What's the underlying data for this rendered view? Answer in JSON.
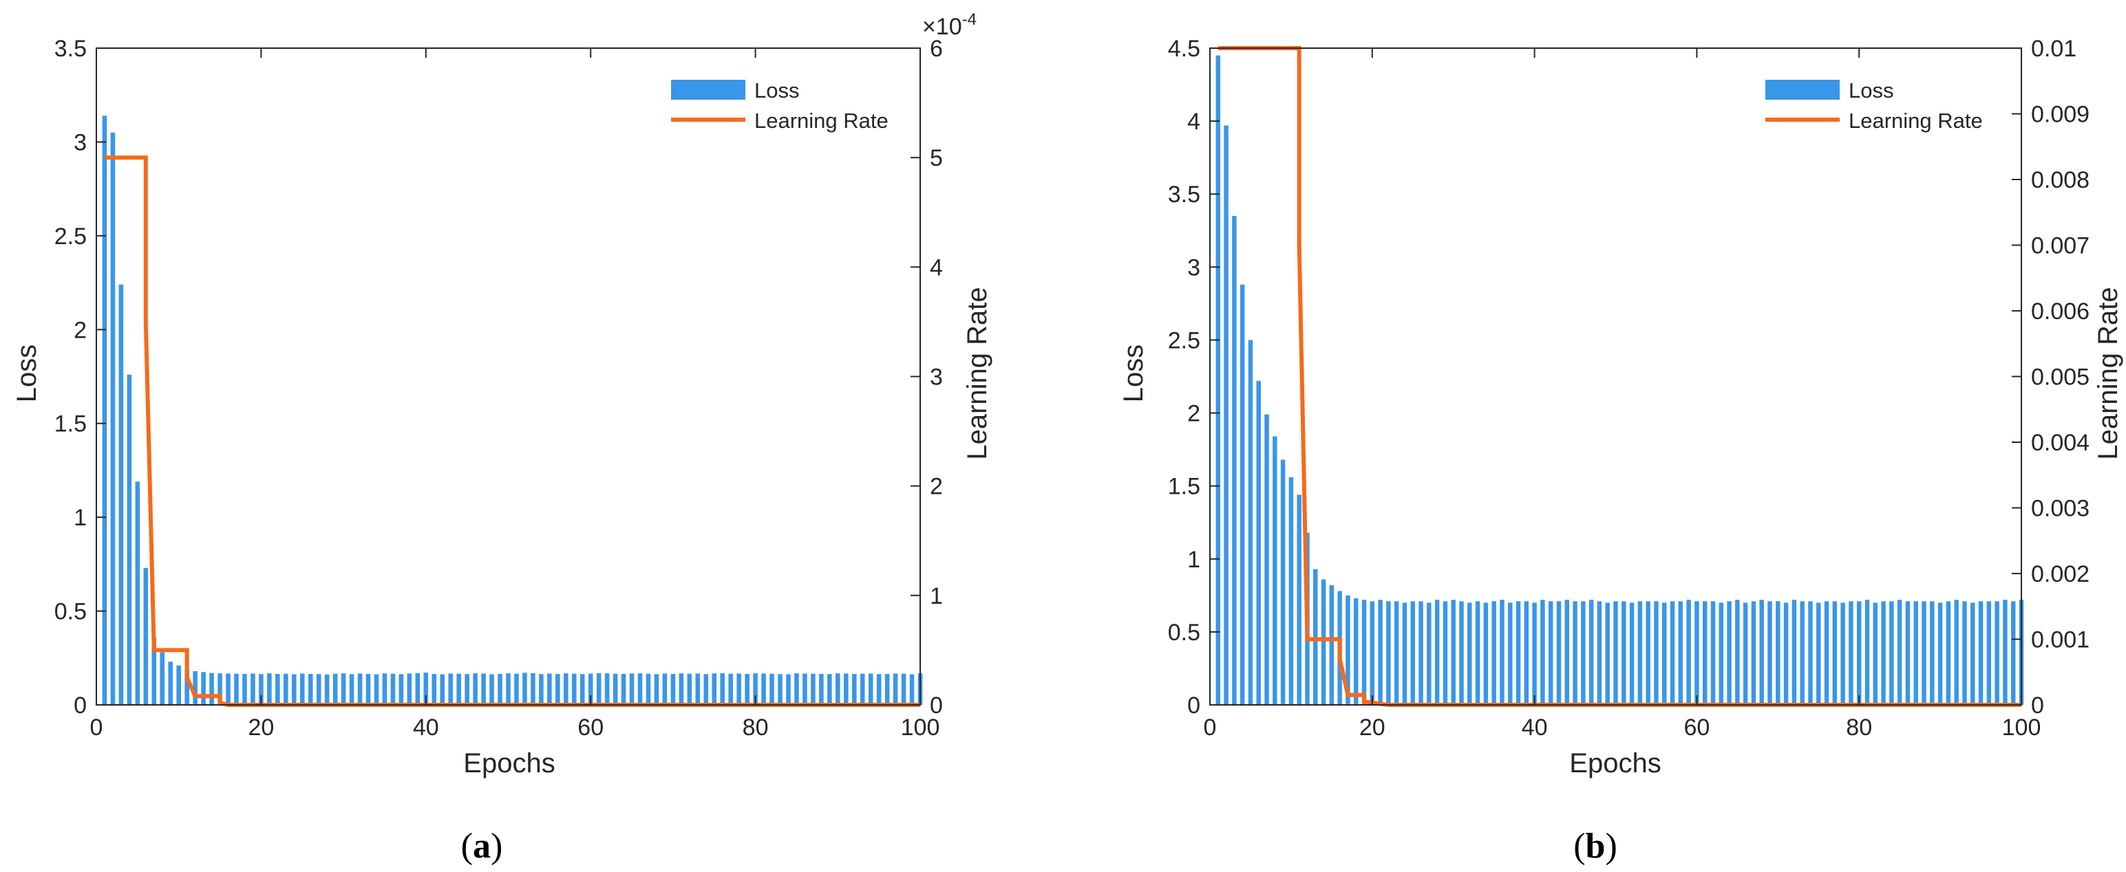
{
  "colors": {
    "loss": "#3a96e8",
    "learning_rate": "#f56a1c",
    "axis": "#262626"
  },
  "chart_data": [
    {
      "type": "bar",
      "panel_label": "a",
      "title": "",
      "xlabel": "Epochs",
      "ylabel": "Loss",
      "y2label": "Learning Rate",
      "y2_multiplier": "×10",
      "y2_exponent": "-4",
      "xlim": [
        0,
        100
      ],
      "ylim": [
        0,
        3.5
      ],
      "y2lim": [
        0,
        6
      ],
      "xticks": [
        "0",
        "20",
        "40",
        "60",
        "80",
        "100"
      ],
      "yticks": [
        "0",
        "0.5",
        "1",
        "1.5",
        "2",
        "2.5",
        "3",
        "3.5"
      ],
      "y2ticks": [
        "0",
        "1",
        "2",
        "3",
        "4",
        "5",
        "6"
      ],
      "legend": {
        "position": "top-right",
        "entries": [
          "Loss",
          "Learning Rate"
        ]
      },
      "series": [
        {
          "name": "Loss",
          "kind": "bar",
          "x": [
            1,
            2,
            3,
            4,
            5,
            6,
            7,
            8,
            9,
            10,
            11,
            12,
            13,
            14,
            15,
            16,
            17,
            18,
            19,
            20,
            21,
            22,
            23,
            24,
            25,
            26,
            27,
            28,
            29,
            30,
            31,
            32,
            33,
            34,
            35,
            36,
            37,
            38,
            39,
            40,
            41,
            42,
            43,
            44,
            45,
            46,
            47,
            48,
            49,
            50,
            51,
            52,
            53,
            54,
            55,
            56,
            57,
            58,
            59,
            60,
            61,
            62,
            63,
            64,
            65,
            66,
            67,
            68,
            69,
            70,
            71,
            72,
            73,
            74,
            75,
            76,
            77,
            78,
            79,
            80,
            81,
            82,
            83,
            84,
            85,
            86,
            87,
            88,
            89,
            90,
            91,
            92,
            93,
            94,
            95,
            96,
            97,
            98,
            99,
            100
          ],
          "values": [
            3.14,
            3.05,
            2.24,
            1.76,
            1.19,
            0.73,
            0.36,
            0.28,
            0.23,
            0.21,
            0.19,
            0.18,
            0.175,
            0.17,
            0.168,
            0.167,
            0.166,
            0.165,
            0.167,
            0.164,
            0.168,
            0.165,
            0.166,
            0.163,
            0.167,
            0.165,
            0.164,
            0.162,
            0.166,
            0.168,
            0.164,
            0.167,
            0.165,
            0.163,
            0.168,
            0.166,
            0.164,
            0.167,
            0.169,
            0.172,
            0.165,
            0.163,
            0.167,
            0.166,
            0.164,
            0.168,
            0.167,
            0.163,
            0.165,
            0.168,
            0.166,
            0.171,
            0.169,
            0.164,
            0.167,
            0.165,
            0.168,
            0.166,
            0.164,
            0.167,
            0.169,
            0.168,
            0.166,
            0.165,
            0.167,
            0.168,
            0.166,
            0.164,
            0.167,
            0.165,
            0.168,
            0.166,
            0.167,
            0.164,
            0.168,
            0.169,
            0.166,
            0.167,
            0.165,
            0.168,
            0.167,
            0.166,
            0.164,
            0.163,
            0.168,
            0.167,
            0.166,
            0.165,
            0.164,
            0.168,
            0.167,
            0.165,
            0.166,
            0.167,
            0.164,
            0.165,
            0.167,
            0.166,
            0.163,
            0.168
          ]
        },
        {
          "name": "Learning Rate",
          "kind": "step",
          "axis": "right",
          "x": [
            1,
            6,
            6,
            7,
            11,
            11,
            12,
            15,
            15,
            16,
            100
          ],
          "values": [
            5,
            5,
            3.5,
            0.5,
            0.5,
            0.25,
            0.08,
            0.08,
            0.02,
            0.0,
            0.0
          ]
        }
      ]
    },
    {
      "type": "bar",
      "panel_label": "b",
      "title": "",
      "xlabel": "Epochs",
      "ylabel": "Loss",
      "y2label": "Learning Rate",
      "xlim": [
        0,
        100
      ],
      "ylim": [
        0,
        4.5
      ],
      "y2lim": [
        0,
        0.01
      ],
      "xticks": [
        "0",
        "20",
        "40",
        "60",
        "80",
        "100"
      ],
      "yticks": [
        "0",
        "0.5",
        "1",
        "1.5",
        "2",
        "2.5",
        "3",
        "3.5",
        "4",
        "4.5"
      ],
      "y2ticks": [
        "0",
        "0.001",
        "0.002",
        "0.003",
        "0.004",
        "0.005",
        "0.006",
        "0.007",
        "0.008",
        "0.009",
        "0.01"
      ],
      "legend": {
        "position": "top-right",
        "entries": [
          "Loss",
          "Learning Rate"
        ]
      },
      "series": [
        {
          "name": "Loss",
          "kind": "bar",
          "x": [
            1,
            2,
            3,
            4,
            5,
            6,
            7,
            8,
            9,
            10,
            11,
            12,
            13,
            14,
            15,
            16,
            17,
            18,
            19,
            20,
            21,
            22,
            23,
            24,
            25,
            26,
            27,
            28,
            29,
            30,
            31,
            32,
            33,
            34,
            35,
            36,
            37,
            38,
            39,
            40,
            41,
            42,
            43,
            44,
            45,
            46,
            47,
            48,
            49,
            50,
            51,
            52,
            53,
            54,
            55,
            56,
            57,
            58,
            59,
            60,
            61,
            62,
            63,
            64,
            65,
            66,
            67,
            68,
            69,
            70,
            71,
            72,
            73,
            74,
            75,
            76,
            77,
            78,
            79,
            80,
            81,
            82,
            83,
            84,
            85,
            86,
            87,
            88,
            89,
            90,
            91,
            92,
            93,
            94,
            95,
            96,
            97,
            98,
            99,
            100
          ],
          "values": [
            4.45,
            3.97,
            3.35,
            2.88,
            2.5,
            2.22,
            1.99,
            1.84,
            1.68,
            1.56,
            1.44,
            1.18,
            0.93,
            0.86,
            0.82,
            0.78,
            0.75,
            0.73,
            0.72,
            0.71,
            0.72,
            0.71,
            0.71,
            0.7,
            0.71,
            0.71,
            0.7,
            0.72,
            0.71,
            0.72,
            0.71,
            0.7,
            0.71,
            0.7,
            0.71,
            0.72,
            0.7,
            0.71,
            0.71,
            0.7,
            0.72,
            0.71,
            0.71,
            0.72,
            0.71,
            0.71,
            0.72,
            0.71,
            0.7,
            0.71,
            0.71,
            0.7,
            0.71,
            0.71,
            0.71,
            0.7,
            0.71,
            0.71,
            0.72,
            0.71,
            0.71,
            0.71,
            0.7,
            0.71,
            0.72,
            0.7,
            0.71,
            0.72,
            0.71,
            0.71,
            0.7,
            0.72,
            0.71,
            0.71,
            0.7,
            0.71,
            0.71,
            0.7,
            0.71,
            0.71,
            0.72,
            0.7,
            0.71,
            0.71,
            0.72,
            0.71,
            0.71,
            0.71,
            0.71,
            0.7,
            0.71,
            0.72,
            0.71,
            0.7,
            0.71,
            0.71,
            0.71,
            0.72,
            0.71,
            0.72
          ]
        },
        {
          "name": "Learning Rate",
          "kind": "step",
          "axis": "right",
          "x": [
            1,
            11,
            11,
            12,
            16,
            16,
            17,
            19,
            19,
            22,
            100
          ],
          "values": [
            0.01,
            0.01,
            0.007,
            0.001,
            0.001,
            0.0007,
            0.00015,
            0.00015,
            5e-05,
            0.0,
            0.0
          ]
        }
      ]
    }
  ]
}
